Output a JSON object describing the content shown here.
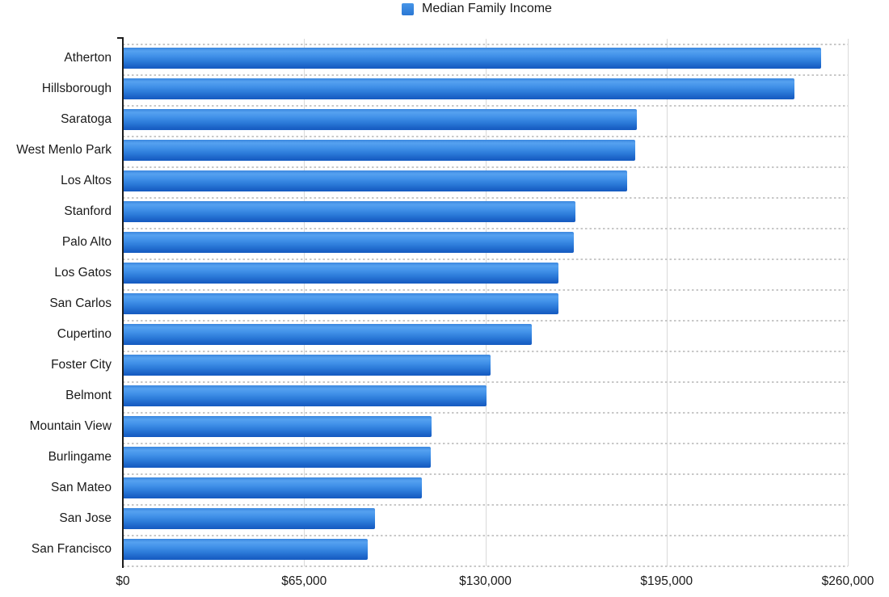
{
  "chart_data": {
    "type": "bar",
    "orientation": "horizontal",
    "title": "",
    "legend": {
      "label": "Median Family Income",
      "position": "top-center"
    },
    "categories": [
      "Atherton",
      "Hillsborough",
      "Saratoga",
      "West Menlo Park",
      "Los Altos",
      "Stanford",
      "Palo Alto",
      "Los Gatos",
      "San Carlos",
      "Cupertino",
      "Foster City",
      "Belmont",
      "Mountain View",
      "Burlingame",
      "San Mateo",
      "San Jose",
      "San Francisco"
    ],
    "series": [
      {
        "name": "Median Family Income",
        "values": [
          250000,
          240500,
          184000,
          183500,
          180500,
          162000,
          161500,
          156000,
          156000,
          146500,
          131500,
          130000,
          110500,
          110000,
          107000,
          90000,
          87500
        ]
      }
    ],
    "x_axis": {
      "tick_labels": [
        "$0",
        "$65,000",
        "$130,000",
        "$195,000",
        "$260,000"
      ],
      "tick_values": [
        0,
        65000,
        130000,
        195000,
        260000
      ],
      "min": 0,
      "max": 260000
    },
    "y_axis": {
      "label": ""
    },
    "grid": {
      "vertical_lines": "solid",
      "horizontal_lines": "dashed",
      "legend_position": "top-center"
    },
    "colors": {
      "bar_base": "#2e80d9",
      "bar_gradient_light": "#55a1f0",
      "bar_gradient_dark": "#155ac0",
      "vertical_gridline": "#d9d9d9",
      "horizontal_gridline": "#c8c8c8",
      "axis_line": "#1c1c1c",
      "text": "#1a1a1a",
      "background": "#ffffff"
    }
  }
}
